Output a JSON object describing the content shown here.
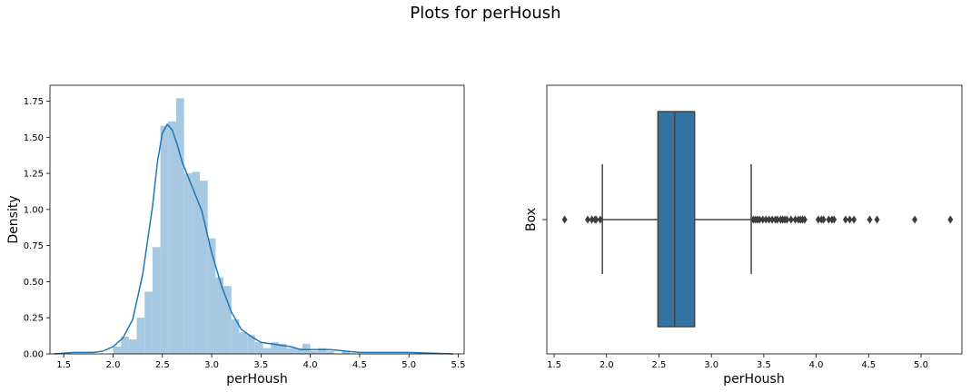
{
  "figure": {
    "title": "Plots for perHoush"
  },
  "chart_data": [
    {
      "type": "bar",
      "subtype": "histogram-with-kde",
      "xlabel": "perHoush",
      "ylabel": "Density",
      "xlim": [
        1.36,
        5.56
      ],
      "ylim": [
        0,
        1.86
      ],
      "xticks": [
        "1.5",
        "2.0",
        "2.5",
        "3.0",
        "3.5",
        "4.0",
        "4.5",
        "5.0",
        "5.5"
      ],
      "yticks": [
        "0.00",
        "0.25",
        "0.50",
        "0.75",
        "1.00",
        "1.25",
        "1.50",
        "1.75"
      ],
      "bar_color": "#a6c8e0",
      "line_color": "#1f77b4",
      "histogram": {
        "bin_width": 0.08,
        "bins": [
          {
            "x": 2.0,
            "value": 0.05
          },
          {
            "x": 2.08,
            "value": 0.12
          },
          {
            "x": 2.16,
            "value": 0.1
          },
          {
            "x": 2.24,
            "value": 0.25
          },
          {
            "x": 2.32,
            "value": 0.43
          },
          {
            "x": 2.4,
            "value": 0.74
          },
          {
            "x": 2.48,
            "value": 1.58
          },
          {
            "x": 2.56,
            "value": 1.61
          },
          {
            "x": 2.64,
            "value": 1.77
          },
          {
            "x": 2.72,
            "value": 1.25
          },
          {
            "x": 2.8,
            "value": 1.26
          },
          {
            "x": 2.88,
            "value": 1.2
          },
          {
            "x": 2.96,
            "value": 0.8
          },
          {
            "x": 3.04,
            "value": 0.53
          },
          {
            "x": 3.12,
            "value": 0.47
          },
          {
            "x": 3.2,
            "value": 0.24
          },
          {
            "x": 3.28,
            "value": 0.15
          },
          {
            "x": 3.36,
            "value": 0.13
          },
          {
            "x": 3.44,
            "value": 0.08
          },
          {
            "x": 3.52,
            "value": 0.04
          },
          {
            "x": 3.6,
            "value": 0.08
          },
          {
            "x": 3.68,
            "value": 0.07
          },
          {
            "x": 3.76,
            "value": 0.04
          },
          {
            "x": 3.84,
            "value": 0.04
          },
          {
            "x": 3.92,
            "value": 0.07
          },
          {
            "x": 4.0,
            "value": 0.02
          },
          {
            "x": 4.08,
            "value": 0.04
          },
          {
            "x": 4.16,
            "value": 0.02
          },
          {
            "x": 4.32,
            "value": 0.02
          }
        ]
      },
      "kde": {
        "x": [
          1.4,
          1.6,
          1.8,
          1.9,
          2.0,
          2.1,
          2.2,
          2.3,
          2.4,
          2.45,
          2.5,
          2.55,
          2.6,
          2.65,
          2.7,
          2.8,
          2.9,
          3.0,
          3.1,
          3.2,
          3.3,
          3.4,
          3.5,
          3.6,
          3.7,
          3.8,
          3.9,
          4.0,
          4.2,
          4.5,
          5.0,
          5.45
        ],
        "y": [
          0.0,
          0.01,
          0.01,
          0.02,
          0.05,
          0.11,
          0.24,
          0.55,
          1.02,
          1.33,
          1.53,
          1.59,
          1.55,
          1.45,
          1.33,
          1.16,
          0.99,
          0.7,
          0.47,
          0.29,
          0.17,
          0.12,
          0.08,
          0.07,
          0.06,
          0.05,
          0.03,
          0.03,
          0.03,
          0.01,
          0.01,
          0.0
        ]
      }
    },
    {
      "type": "box",
      "xlabel": "perHoush",
      "ylabel": "Box",
      "ytick": "",
      "xlim": [
        1.43,
        5.39
      ],
      "xticks": [
        "1.5",
        "2.0",
        "2.5",
        "3.0",
        "3.5",
        "4.0",
        "4.5",
        "5.0"
      ],
      "box_color": "#3274a1",
      "whisker_color": "#444444",
      "stats": {
        "whisker_low": 1.96,
        "q1": 2.49,
        "median": 2.65,
        "q3": 2.84,
        "whisker_high": 3.38
      },
      "outliers": [
        1.6,
        1.82,
        1.86,
        1.89,
        1.9,
        1.94,
        3.4,
        3.42,
        3.44,
        3.46,
        3.49,
        3.52,
        3.55,
        3.58,
        3.61,
        3.63,
        3.66,
        3.68,
        3.7,
        3.72,
        3.76,
        3.8,
        3.83,
        3.85,
        3.87,
        3.89,
        4.02,
        4.05,
        4.07,
        4.12,
        4.15,
        4.17,
        4.28,
        4.32,
        4.36,
        4.51,
        4.58,
        4.94,
        5.28
      ]
    }
  ]
}
